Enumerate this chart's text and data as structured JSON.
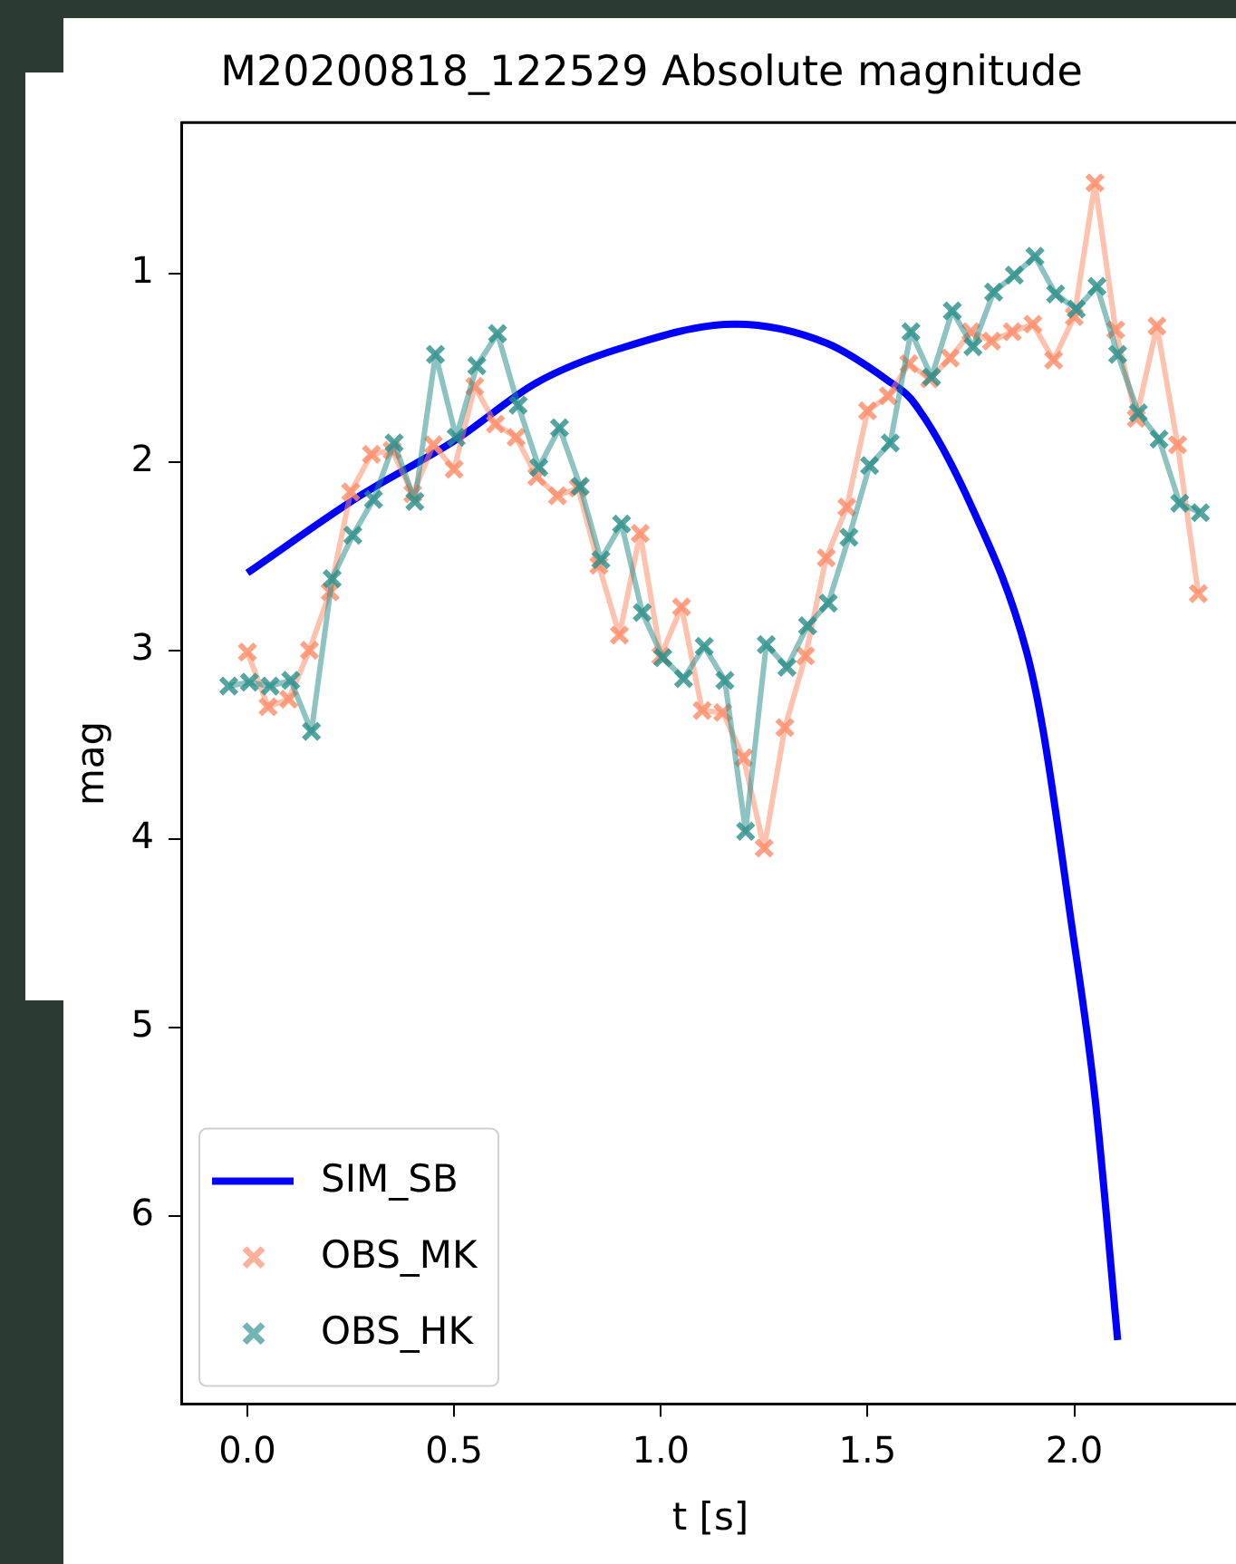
{
  "chart_data": {
    "type": "line",
    "title": "M20200818_122529 Absolute magnitude",
    "xlabel": "t [s]",
    "ylabel": "mag",
    "xlim": [
      -0.16,
      2.4
    ],
    "xticks": [
      {
        "value": 0,
        "label": "0.0"
      },
      {
        "value": 0.5,
        "label": "0.5"
      },
      {
        "value": 1,
        "label": "1.0"
      },
      {
        "value": 1.5,
        "label": "1.5"
      },
      {
        "value": 2,
        "label": "2.0"
      }
    ],
    "ylim": [
      7.0,
      0.2
    ],
    "yticks": [
      1,
      2,
      3,
      4,
      5,
      6
    ],
    "legend": "bottom left",
    "series": [
      {
        "name": "SIM_SB",
        "type": "line",
        "marker": "none",
        "color": "#0000ff",
        "x": [
          0,
          0.28,
          0.5,
          0.7,
          0.9,
          1.18,
          1.4,
          1.55,
          1.61,
          1.75,
          1.885,
          1.925,
          1.99,
          2.05,
          2.105
        ],
        "values": [
          2.59,
          2.17,
          1.89,
          1.58,
          1.4,
          1.27,
          1.37,
          1.57,
          1.68,
          2.23,
          3.01,
          3.43,
          4.4,
          5.37,
          6.66
        ]
      },
      {
        "name": "OBS_MK",
        "type": "line",
        "marker": "cross",
        "color": "#ff8c69",
        "x": [
          0,
          0.05,
          0.1,
          0.15,
          0.2,
          0.25,
          0.3,
          0.35,
          0.4,
          0.45,
          0.5,
          0.55,
          0.6,
          0.65,
          0.7,
          0.75,
          0.8,
          0.85,
          0.9,
          0.95,
          1.0,
          1.05,
          1.1,
          1.15,
          1.2,
          1.25,
          1.3,
          1.35,
          1.4,
          1.45,
          1.5,
          1.55,
          1.6,
          1.65,
          1.7,
          1.75,
          1.8,
          1.85,
          1.9,
          1.95,
          2.0,
          2.05,
          2.1,
          2.15,
          2.2,
          2.25,
          2.3
        ],
        "values": [
          3.01,
          3.3,
          3.26,
          3.0,
          2.69,
          2.16,
          1.96,
          1.94,
          2.17,
          1.91,
          2.04,
          1.6,
          1.8,
          1.87,
          2.08,
          2.18,
          2.14,
          2.55,
          2.92,
          2.38,
          3.03,
          2.77,
          3.32,
          3.33,
          3.57,
          4.05,
          3.41,
          3.03,
          2.51,
          2.24,
          1.73,
          1.65,
          1.48,
          1.56,
          1.45,
          1.31,
          1.36,
          1.31,
          1.27,
          1.46,
          1.23,
          0.52,
          1.3,
          1.77,
          1.28,
          1.91,
          2.7
        ]
      },
      {
        "name": "OBS_HK",
        "type": "line",
        "marker": "cross",
        "color": "#2a8f8a",
        "x": [
          -0.045,
          0.005,
          0.055,
          0.105,
          0.155,
          0.205,
          0.255,
          0.305,
          0.355,
          0.405,
          0.455,
          0.505,
          0.555,
          0.605,
          0.655,
          0.705,
          0.755,
          0.805,
          0.855,
          0.905,
          0.955,
          1.005,
          1.055,
          1.105,
          1.155,
          1.205,
          1.255,
          1.305,
          1.355,
          1.405,
          1.455,
          1.505,
          1.555,
          1.605,
          1.655,
          1.705,
          1.755,
          1.805,
          1.855,
          1.905,
          1.955,
          2.005,
          2.055,
          2.105,
          2.155,
          2.205,
          2.255,
          2.305
        ],
        "values": [
          3.19,
          3.17,
          3.19,
          3.16,
          3.43,
          2.62,
          2.39,
          2.2,
          1.9,
          2.21,
          1.43,
          1.87,
          1.49,
          1.32,
          1.7,
          2.03,
          1.82,
          2.13,
          2.52,
          2.33,
          2.8,
          3.04,
          3.15,
          2.98,
          3.16,
          3.96,
          2.97,
          3.09,
          2.87,
          2.75,
          2.4,
          2.02,
          1.9,
          1.31,
          1.55,
          1.2,
          1.39,
          1.1,
          1.01,
          0.91,
          1.11,
          1.19,
          1.07,
          1.43,
          1.74,
          1.88,
          2.22,
          2.27
        ]
      }
    ]
  }
}
